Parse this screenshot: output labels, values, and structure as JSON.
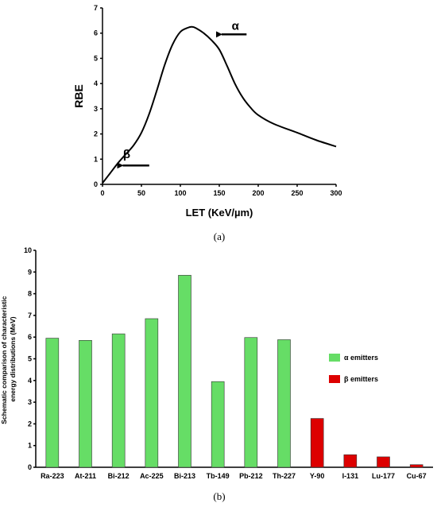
{
  "chart_data": [
    {
      "type": "line",
      "panel_label": "(a)",
      "xlabel": "LET (KeV/µm)",
      "ylabel": "RBE",
      "xlim": [
        0,
        300
      ],
      "ylim": [
        0,
        7
      ],
      "xticks": [
        0,
        50,
        100,
        150,
        200,
        250,
        300
      ],
      "yticks": [
        0,
        1,
        2,
        3,
        4,
        5,
        6,
        7
      ],
      "grid": false,
      "series": [
        {
          "x": [
            0,
            10,
            20,
            30,
            40,
            50,
            60,
            70,
            80,
            90,
            100,
            110,
            115,
            120,
            130,
            140,
            150,
            160,
            170,
            180,
            190,
            200,
            220,
            250,
            275,
            300
          ],
          "y": [
            0.05,
            0.45,
            0.85,
            1.2,
            1.55,
            2.05,
            2.8,
            3.75,
            4.75,
            5.55,
            6.05,
            6.22,
            6.25,
            6.2,
            6.0,
            5.72,
            5.35,
            4.7,
            4.0,
            3.45,
            3.05,
            2.75,
            2.4,
            2.05,
            1.75,
            1.5
          ]
        }
      ],
      "annotations": [
        {
          "text": "α",
          "arrow_tip": [
            153,
            5.95
          ],
          "arrow_tail": [
            185,
            5.95
          ]
        },
        {
          "text": "β",
          "arrow_tip": [
            26,
            0.75
          ],
          "arrow_tail": [
            60,
            0.75
          ]
        }
      ]
    },
    {
      "type": "bar",
      "panel_label": "(b)",
      "ylabel": "Schematic comparison of characteristic energy distributions (MeV)",
      "ylim": [
        0,
        10
      ],
      "yticks": [
        0,
        1,
        2,
        3,
        4,
        5,
        6,
        7,
        8,
        9,
        10
      ],
      "grid": false,
      "legend_position": "right",
      "categories": [
        "Ra-223",
        "At-211",
        "Bi-212",
        "Ac-225",
        "Bi-213",
        "Tb-149",
        "Pb-212",
        "Th-227",
        "Y-90",
        "I-131",
        "Lu-177",
        "Cu-67"
      ],
      "series": [
        {
          "name": "α emitters",
          "color": "#66dd66",
          "values": [
            5.95,
            5.85,
            6.15,
            6.85,
            8.85,
            3.95,
            5.98,
            5.88,
            null,
            null,
            null,
            null
          ]
        },
        {
          "name": "β emitters",
          "color": "#dd0000",
          "values": [
            null,
            null,
            null,
            null,
            null,
            null,
            null,
            null,
            2.25,
            0.58,
            0.48,
            0.12
          ]
        }
      ]
    }
  ]
}
